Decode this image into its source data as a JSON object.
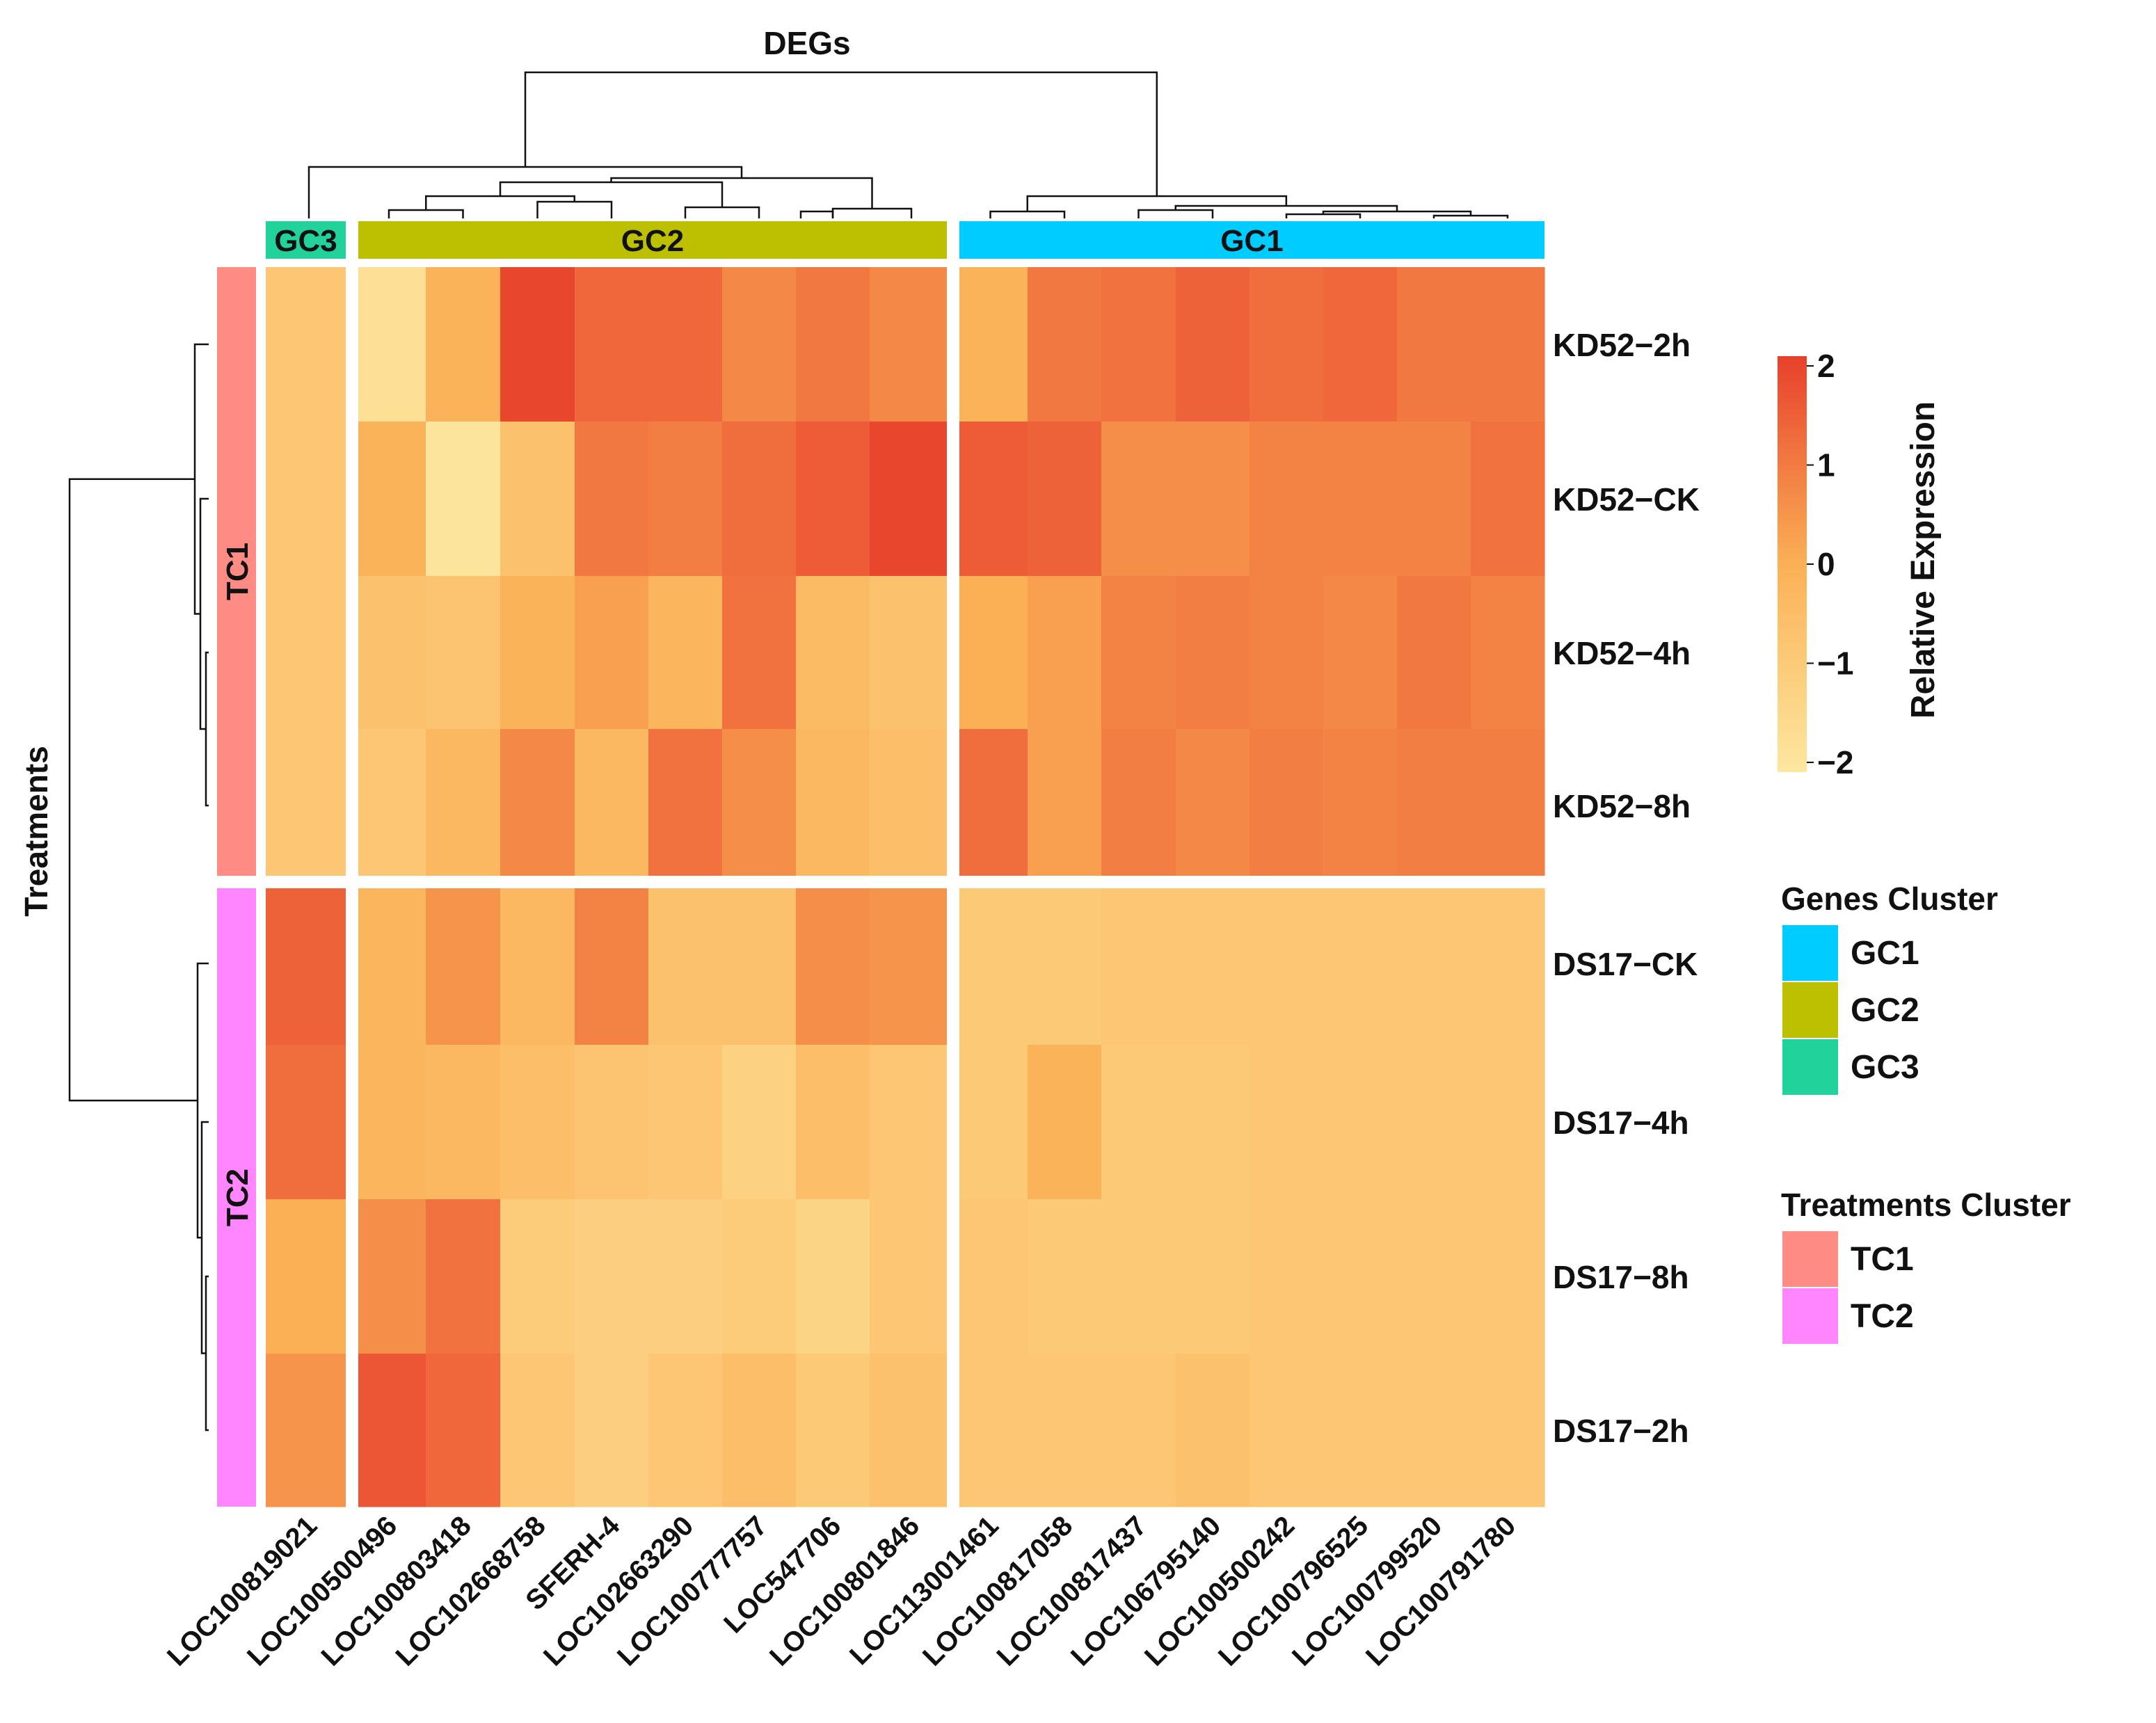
{
  "chart_data": {
    "type": "heatmap",
    "title": "DEGs",
    "ylabel": "Treatments",
    "legend_title": "Relative Expression",
    "color_range": [
      -2,
      2
    ],
    "legend_ticks": [
      "2",
      "1",
      "0",
      "−1",
      "−2"
    ],
    "colormap": [
      "#fde7a0",
      "#fbb056",
      "#e8402c"
    ],
    "genes": [
      "LOC100819021",
      "LOC100500496",
      "LOC100803418",
      "LOC102668758",
      "SFERH-4",
      "LOC102663290",
      "LOC100777757",
      "LOC547706",
      "LOC100801846",
      "LOC113001461",
      "LOC100817058",
      "LOC100817437",
      "LOC106795140",
      "LOC100500242",
      "LOC100796525",
      "LOC100799520",
      "LOC100791780"
    ],
    "treatments": [
      "KD52−2h",
      "KD52−CK",
      "KD52−4h",
      "KD52−8h",
      "DS17−CK",
      "DS17−4h",
      "DS17−8h",
      "DS17−2h"
    ],
    "values": [
      [
        -0.8,
        -1.7,
        -0.1,
        1.9,
        1.3,
        1.3,
        0.7,
        1.0,
        0.7,
        -0.1,
        1.0,
        1.1,
        1.4,
        1.2,
        1.3,
        1.0,
        1.0
      ],
      [
        -0.8,
        -0.1,
        -1.9,
        -0.6,
        1.0,
        0.9,
        1.2,
        1.5,
        1.9,
        1.5,
        1.4,
        0.6,
        0.6,
        0.8,
        0.8,
        0.8,
        1.1
      ],
      [
        -0.8,
        -0.6,
        -0.7,
        -0.1,
        0.3,
        -0.2,
        1.1,
        -0.4,
        -0.6,
        0.0,
        0.3,
        0.8,
        0.9,
        0.8,
        0.7,
        1.0,
        0.8
      ],
      [
        -0.8,
        -0.8,
        -0.3,
        0.7,
        -0.3,
        1.1,
        0.6,
        -0.3,
        -0.5,
        1.2,
        0.3,
        0.9,
        0.7,
        0.9,
        0.8,
        0.9,
        0.9
      ],
      [
        1.4,
        -0.2,
        0.5,
        -0.3,
        0.8,
        -0.6,
        -0.6,
        0.6,
        0.5,
        -0.9,
        -0.9,
        -0.8,
        -0.8,
        -0.8,
        -0.8,
        -0.8,
        -0.8
      ],
      [
        1.2,
        -0.2,
        -0.3,
        -0.5,
        -0.7,
        -0.8,
        -1.2,
        -0.5,
        -0.8,
        -0.9,
        -0.1,
        -0.9,
        -0.9,
        -0.8,
        -0.8,
        -0.8,
        -0.8
      ],
      [
        0.0,
        0.6,
        1.1,
        -1.0,
        -1.1,
        -1.1,
        -1.0,
        -1.3,
        -0.8,
        -0.8,
        -0.9,
        -0.9,
        -0.9,
        -0.8,
        -0.8,
        -0.8,
        -0.8
      ],
      [
        0.5,
        1.6,
        1.3,
        -0.8,
        -1.1,
        -0.8,
        -0.5,
        -0.9,
        -0.6,
        -0.8,
        -0.8,
        -0.8,
        -0.6,
        -0.8,
        -0.8,
        -0.8,
        -0.8
      ]
    ],
    "gene_clusters": [
      {
        "name": "GC3",
        "color": "#21d29a",
        "count": 1
      },
      {
        "name": "GC2",
        "color": "#bdc000",
        "count": 8
      },
      {
        "name": "GC1",
        "color": "#00ccff",
        "count": 8
      }
    ],
    "treatment_clusters": [
      {
        "name": "TC1",
        "color": "#ff8c84",
        "count": 4
      },
      {
        "name": "TC2",
        "color": "#ff86ff",
        "count": 4
      }
    ],
    "genes_cluster_legend_title": "Genes Cluster",
    "treatments_cluster_legend_title": "Treatments Cluster",
    "genes_cluster_legend": [
      {
        "label": "GC1",
        "color": "#00ccff"
      },
      {
        "label": "GC2",
        "color": "#bdc000"
      },
      {
        "label": "GC3",
        "color": "#21d29a"
      }
    ],
    "treatments_cluster_legend": [
      {
        "label": "TC1",
        "color": "#ff8c84"
      },
      {
        "label": "TC2",
        "color": "#ff86ff"
      }
    ]
  }
}
